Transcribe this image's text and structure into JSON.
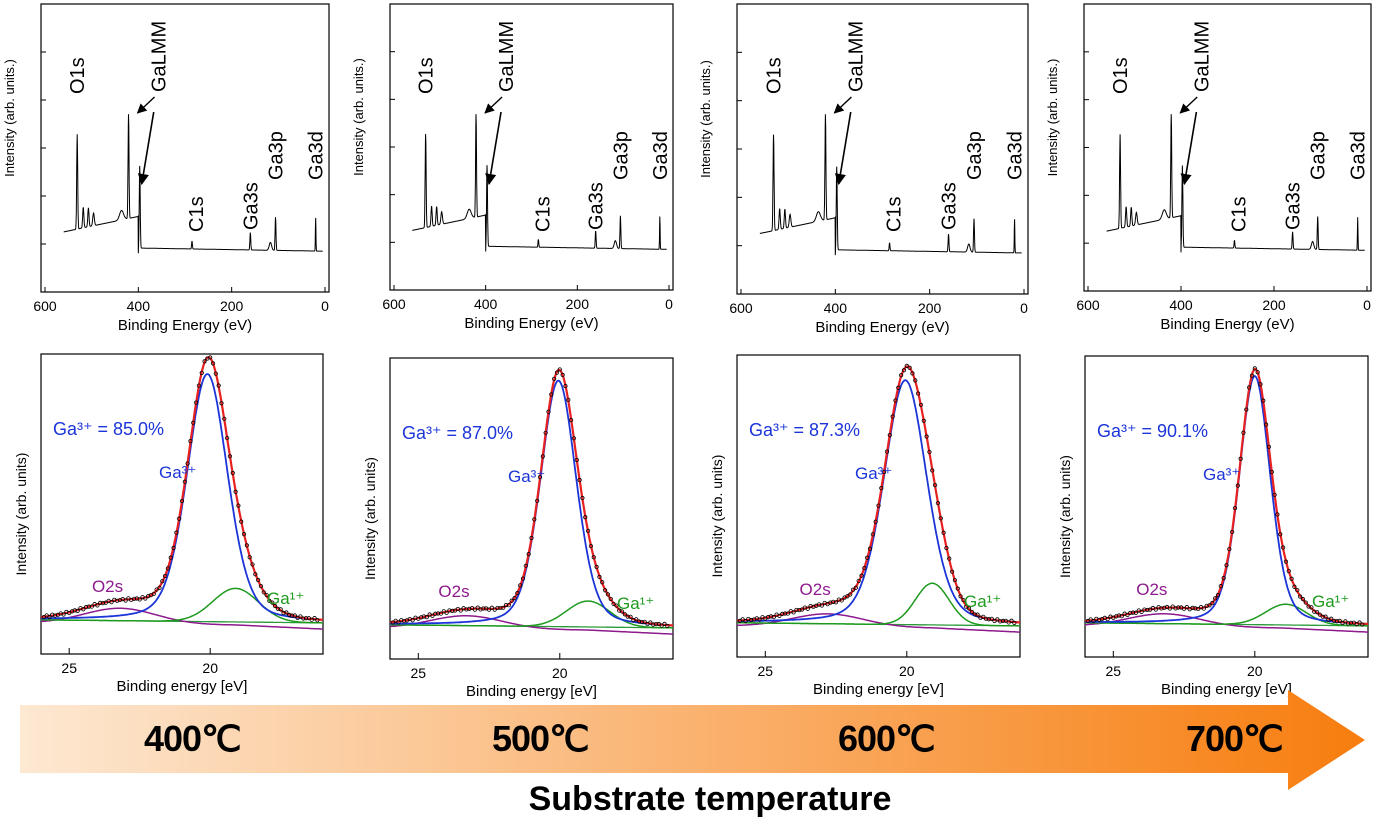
{
  "colors": {
    "survey_line": "#000000",
    "fit_total": "#e8201f",
    "ga3_component": "#1b35d8",
    "ga1_component": "#1e9a1e",
    "o2s_component": "#8e1a8e",
    "background_line": "#2a9a3a",
    "measured_points": "#000000",
    "arrow_start": "#fde8d2",
    "arrow_end": "#f77d0e"
  },
  "chart_data": [
    {
      "type": "line",
      "id": "survey-400",
      "xlabel": "Binding Energy (eV)",
      "ylabel": "Intensity (arb. units.)",
      "xlim": [
        600,
        0
      ],
      "xticks": [
        600,
        400,
        200,
        0
      ],
      "peak_labels": [
        "O1s",
        "GaLMM",
        "C1s",
        "Ga3s",
        "Ga3p",
        "Ga3d"
      ],
      "peaks_eV": {
        "O1s": 531,
        "GaLMM": [
          421,
          397
        ],
        "C1s": 285,
        "Ga3s": 160,
        "Ga3p": 106,
        "Ga3d": 20
      }
    },
    {
      "type": "line",
      "id": "survey-500",
      "xlabel": "Binding Energy (eV)",
      "ylabel": "Intensity (arb. units.)",
      "xlim": [
        600,
        0
      ],
      "xticks": [
        600,
        400,
        200,
        0
      ],
      "peak_labels": [
        "O1s",
        "GaLMM",
        "C1s",
        "Ga3s",
        "Ga3p",
        "Ga3d"
      ],
      "peaks_eV": {
        "O1s": 531,
        "GaLMM": [
          421,
          397
        ],
        "C1s": 285,
        "Ga3s": 160,
        "Ga3p": 106,
        "Ga3d": 20
      }
    },
    {
      "type": "line",
      "id": "survey-600",
      "xlabel": "Binding Energy (eV)",
      "ylabel": "Intensity (arb. units.)",
      "xlim": [
        600,
        0
      ],
      "xticks": [
        600,
        400,
        200,
        0
      ],
      "peak_labels": [
        "O1s",
        "GaLMM",
        "C1s",
        "Ga3s",
        "Ga3p",
        "Ga3d"
      ],
      "peaks_eV": {
        "O1s": 531,
        "GaLMM": [
          421,
          397
        ],
        "C1s": 285,
        "Ga3s": 160,
        "Ga3p": 106,
        "Ga3d": 20
      }
    },
    {
      "type": "line",
      "id": "survey-700",
      "xlabel": "Binding Energy (eV)",
      "ylabel": "Intensity (arb. units.)",
      "xlim": [
        600,
        0
      ],
      "xticks": [
        600,
        400,
        200,
        0
      ],
      "peak_labels": [
        "O1s",
        "GaLMM",
        "C1s",
        "Ga3s",
        "Ga3p",
        "Ga3d"
      ],
      "peaks_eV": {
        "O1s": 531,
        "GaLMM": [
          421,
          397
        ],
        "C1s": 285,
        "Ga3s": 160,
        "Ga3p": 106,
        "Ga3d": 20
      }
    },
    {
      "type": "line",
      "id": "ga3d-400",
      "xlabel": "Binding energy [eV]",
      "ylabel": "Intensity (arb. units)",
      "xlim": [
        26,
        16
      ],
      "xticks": [
        25,
        20
      ],
      "ratio_text": "Ga³⁺ = 85.0%",
      "component_labels": [
        "Ga³⁺",
        "Ga¹⁺",
        "O2s"
      ],
      "peaks": {
        "ga3": {
          "center": 20.1,
          "height": 0.96,
          "fwhm": 1.7
        },
        "ga1": {
          "center": 19.1,
          "height": 0.13,
          "fwhm": 1.9
        },
        "o2s": {
          "center": 23.2,
          "height": 0.06,
          "fwhm": 3.0
        }
      }
    },
    {
      "type": "line",
      "id": "ga3d-500",
      "xlabel": "Binding energy [eV]",
      "ylabel": "Intensity (arb. units)",
      "xlim": [
        26,
        16
      ],
      "xticks": [
        25,
        20
      ],
      "ratio_text": "Ga³⁺ = 87.0%",
      "component_labels": [
        "Ga³⁺",
        "Ga¹⁺",
        "O2s"
      ],
      "peaks": {
        "ga3": {
          "center": 20.05,
          "height": 0.95,
          "fwhm": 1.5
        },
        "ga1": {
          "center": 19.0,
          "height": 0.1,
          "fwhm": 1.8
        },
        "o2s": {
          "center": 23.3,
          "height": 0.05,
          "fwhm": 3.0
        }
      }
    },
    {
      "type": "line",
      "id": "ga3d-600",
      "xlabel": "Binding energy [eV]",
      "ylabel": "Intensity (arb. units)",
      "xlim": [
        26,
        16
      ],
      "xticks": [
        25,
        20
      ],
      "ratio_text": "Ga³⁺ = 87.3%",
      "component_labels": [
        "Ga³⁺",
        "Ga¹⁺",
        "O2s"
      ],
      "peaks": {
        "ga3": {
          "center": 20.05,
          "height": 0.94,
          "fwhm": 1.8
        },
        "ga1": {
          "center": 19.1,
          "height": 0.16,
          "fwhm": 1.4
        },
        "o2s": {
          "center": 22.8,
          "height": 0.05,
          "fwhm": 3.0
        }
      }
    },
    {
      "type": "line",
      "id": "ga3d-700",
      "xlabel": "Binding energy [eV]",
      "ylabel": "Intensity (arb. units)",
      "xlim": [
        26,
        16
      ],
      "xticks": [
        25,
        20
      ],
      "ratio_text": "Ga³⁺ = 90.1%",
      "component_labels": [
        "Ga³⁺",
        "Ga¹⁺",
        "O2s"
      ],
      "peaks": {
        "ga3": {
          "center": 20.0,
          "height": 0.96,
          "fwhm": 1.3
        },
        "ga1": {
          "center": 18.9,
          "height": 0.08,
          "fwhm": 1.7
        },
        "o2s": {
          "center": 23.2,
          "height": 0.05,
          "fwhm": 3.0
        }
      }
    }
  ],
  "temperature_axis": {
    "labels": [
      "400℃",
      "500℃",
      "600℃",
      "700℃"
    ],
    "title": "Substrate temperature"
  }
}
